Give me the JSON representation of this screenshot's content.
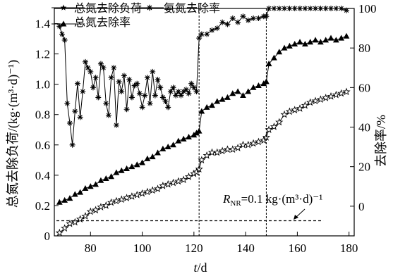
{
  "chart_data": {
    "type": "line",
    "title": "",
    "xlabel": "t/d",
    "ylabel_left": "总氮去除负荷/(kg·(m³·d)⁻¹)",
    "ylabel_right": "去除率/%",
    "xlim": [
      66,
      182
    ],
    "ylim_left": [
      0,
      1.5
    ],
    "ylim_right": [
      -15,
      100
    ],
    "x_ticks": [
      80,
      100,
      120,
      140,
      160,
      180
    ],
    "y_left_ticks": [
      0,
      0.2,
      0.4,
      0.6,
      0.8,
      1.0,
      1.2,
      1.4
    ],
    "y_right_ticks": [
      0,
      20,
      40,
      60,
      80,
      100
    ],
    "phase_boundaries": [
      122,
      148
    ],
    "reference_line": {
      "axis": "left",
      "value": 0.1,
      "label_R": "R",
      "label_sub": "NR",
      "label_rest": "=0.1 kg·(m³·d)⁻¹"
    },
    "legend": {
      "placement": "top-left",
      "load": "总氮去除负荷",
      "ammonia": "氨氮去除率",
      "tn": "总氮去除率"
    },
    "series": [
      {
        "name": "总氮去除负荷",
        "axis": "left",
        "marker": "star",
        "x": [
          68,
          70,
          72,
          74,
          76,
          78,
          80,
          82,
          84,
          86,
          88,
          90,
          92,
          94,
          96,
          98,
          100,
          102,
          104,
          106,
          108,
          110,
          112,
          114,
          116,
          118,
          120,
          121,
          122,
          123,
          125,
          127,
          129,
          131,
          133,
          135,
          137,
          139,
          141,
          143,
          145,
          147,
          148,
          149,
          151,
          153,
          155,
          157,
          159,
          161,
          163,
          165,
          167,
          169,
          171,
          173,
          175,
          177,
          179
        ],
        "y": [
          0.02,
          0.05,
          0.08,
          0.09,
          0.11,
          0.13,
          0.16,
          0.17,
          0.19,
          0.2,
          0.22,
          0.23,
          0.24,
          0.25,
          0.26,
          0.27,
          0.28,
          0.29,
          0.3,
          0.31,
          0.33,
          0.34,
          0.35,
          0.36,
          0.37,
          0.39,
          0.41,
          0.42,
          0.44,
          0.5,
          0.53,
          0.55,
          0.55,
          0.56,
          0.57,
          0.57,
          0.58,
          0.6,
          0.6,
          0.61,
          0.62,
          0.63,
          0.65,
          0.7,
          0.72,
          0.75,
          0.8,
          0.82,
          0.83,
          0.84,
          0.86,
          0.88,
          0.89,
          0.9,
          0.91,
          0.92,
          0.93,
          0.94,
          0.95
        ]
      },
      {
        "name": "氨氮去除率",
        "axis": "right",
        "marker": "asterisk",
        "x": [
          68,
          69,
          70,
          71,
          72,
          73,
          74,
          75,
          76,
          77,
          78,
          79,
          80,
          81,
          82,
          83,
          84,
          85,
          86,
          87,
          88,
          89,
          90,
          91,
          92,
          93,
          94,
          95,
          96,
          97,
          98,
          99,
          100,
          101,
          102,
          103,
          104,
          105,
          106,
          107,
          108,
          109,
          110,
          111,
          112,
          113,
          114,
          115,
          116,
          117,
          118,
          119,
          120,
          121,
          122,
          123,
          125,
          127,
          129,
          131,
          133,
          135,
          137,
          139,
          141,
          143,
          145,
          147,
          148,
          149,
          151,
          153,
          155,
          157,
          159,
          161,
          163,
          165,
          167,
          169,
          171,
          173,
          175,
          177,
          179
        ],
        "y": [
          91,
          87,
          84,
          52,
          42,
          31,
          48,
          62,
          45,
          58,
          73,
          70,
          68,
          60,
          65,
          55,
          72,
          70,
          52,
          46,
          65,
          70,
          41,
          63,
          58,
          66,
          49,
          64,
          55,
          61,
          62,
          57,
          50,
          56,
          65,
          52,
          68,
          56,
          64,
          60,
          55,
          53,
          50,
          58,
          60,
          56,
          58,
          56,
          58,
          59,
          57,
          62,
          60,
          58,
          85,
          87,
          87,
          89,
          90,
          93,
          92,
          95,
          93,
          96,
          94,
          95,
          95,
          96,
          96,
          100,
          100,
          100,
          100,
          100,
          100,
          100,
          100,
          100,
          100,
          100,
          100,
          100,
          100,
          100,
          99
        ]
      },
      {
        "name": "总氮去除率",
        "axis": "right",
        "marker": "triangle",
        "x": [
          68,
          70,
          72,
          74,
          76,
          78,
          80,
          82,
          84,
          86,
          88,
          90,
          92,
          94,
          96,
          98,
          100,
          102,
          104,
          106,
          108,
          110,
          112,
          114,
          116,
          118,
          120,
          121,
          122,
          123,
          125,
          127,
          129,
          131,
          133,
          135,
          137,
          139,
          141,
          143,
          145,
          147,
          148,
          149,
          151,
          153,
          155,
          157,
          159,
          161,
          163,
          165,
          167,
          169,
          171,
          173,
          175,
          177,
          179
        ],
        "y": [
          2,
          3,
          4,
          6,
          7,
          9,
          10,
          11,
          13,
          14,
          15,
          17,
          18,
          19,
          20,
          21,
          22,
          24,
          25,
          27,
          29,
          30,
          31,
          33,
          34,
          35,
          36,
          37,
          38,
          48,
          50,
          51,
          53,
          54,
          55,
          57,
          58,
          56,
          58,
          60,
          61,
          62,
          63,
          72,
          75,
          78,
          80,
          81,
          82,
          83,
          82,
          83,
          84,
          83,
          84,
          85,
          84,
          85,
          86
        ]
      }
    ]
  }
}
